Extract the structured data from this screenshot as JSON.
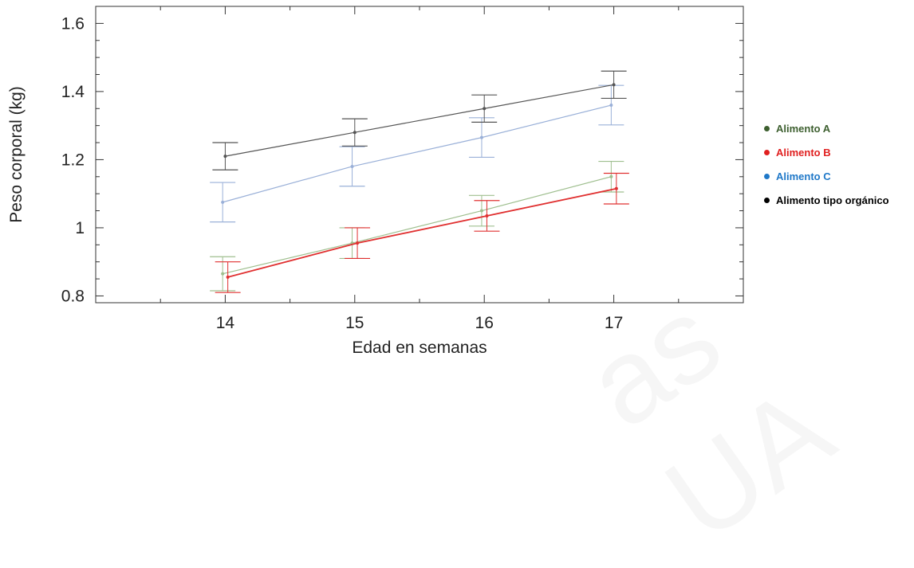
{
  "chart_data": {
    "type": "line",
    "xlabel": "Edad en semanas",
    "ylabel": "Peso corporal (kg)",
    "x": [
      14,
      15,
      16,
      17
    ],
    "x_ticks": [
      "14",
      "15",
      "16",
      "17"
    ],
    "xlim": [
      13,
      18
    ],
    "ylim": [
      0.78,
      1.65
    ],
    "y_ticks": [
      {
        "value": 0.8,
        "label": "0.8"
      },
      {
        "value": 1.0,
        "label": "1"
      },
      {
        "value": 1.2,
        "label": "1.2"
      },
      {
        "value": 1.4,
        "label": "1.4"
      },
      {
        "value": 1.6,
        "label": "1.6"
      }
    ],
    "grid": false,
    "legend_position": "right",
    "series": [
      {
        "name": "Alimento A",
        "color": "#9fbf8f",
        "legend_color": "#3d5f2f",
        "values": [
          0.865,
          0.955,
          1.05,
          1.15
        ],
        "errors": [
          0.05,
          0.045,
          0.045,
          0.045
        ],
        "offset": -0.02
      },
      {
        "name": "Alimento B",
        "color": "#e03030",
        "legend_color": "#e02020",
        "values": [
          0.855,
          0.955,
          1.035,
          1.115
        ],
        "errors": [
          0.045,
          0.045,
          0.045,
          0.045
        ],
        "offset": 0.02
      },
      {
        "name": "Alimento C",
        "color": "#9ab0d8",
        "legend_color": "#1f78c8",
        "values": [
          1.075,
          1.18,
          1.265,
          1.36
        ],
        "errors": [
          0.058,
          0.058,
          0.058,
          0.058
        ],
        "offset": -0.02
      },
      {
        "name": "Alimento tipo orgánico",
        "color": "#555555",
        "legend_color": "#000000",
        "values": [
          1.21,
          1.28,
          1.35,
          1.42
        ],
        "errors": [
          0.04,
          0.04,
          0.04,
          0.04
        ],
        "offset": 0.0
      }
    ]
  },
  "watermark": "as UA"
}
